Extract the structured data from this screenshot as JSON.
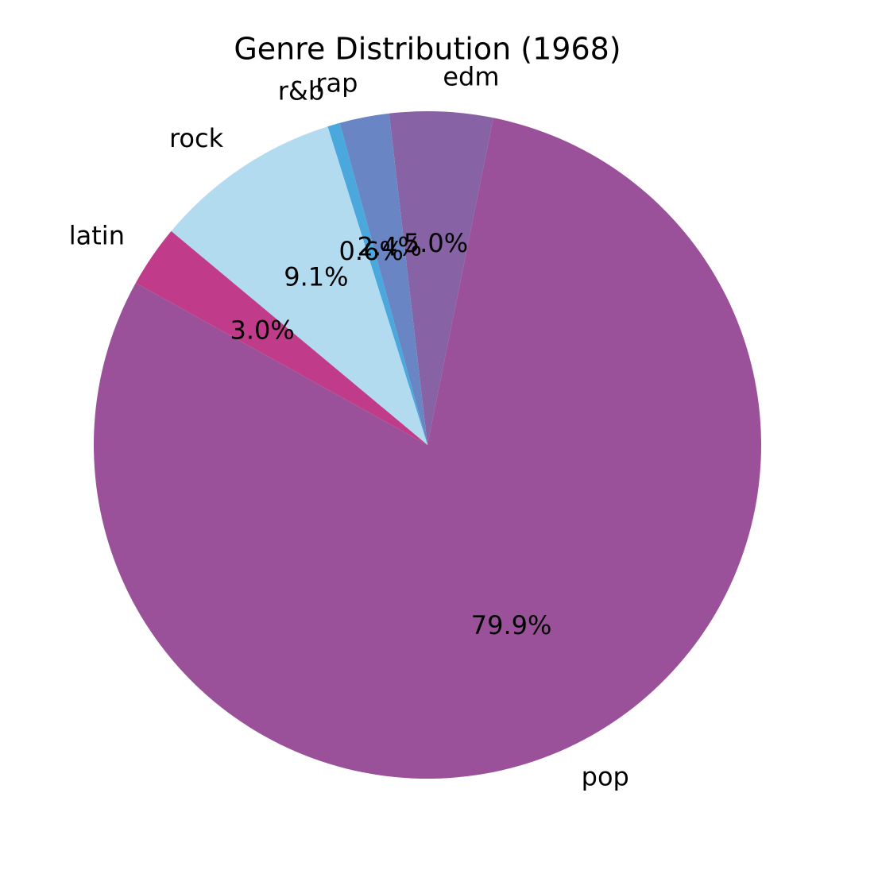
{
  "chart_data": {
    "type": "pie",
    "title": "Genre Distribution (1968)",
    "categories": [
      "edm",
      "rap",
      "r&b",
      "rock",
      "latin",
      "pop"
    ],
    "values": [
      5.0,
      2.4,
      0.6,
      9.1,
      3.0,
      79.9
    ],
    "value_labels": [
      "5.0%",
      "2.4%",
      "0.6%",
      "9.1%",
      "3.0%",
      "79.9%"
    ],
    "colors": [
      "#8762a5",
      "#6a85c4",
      "#4aa8dc",
      "#b3dbef",
      "#c03c8a",
      "#9b5199"
    ]
  }
}
